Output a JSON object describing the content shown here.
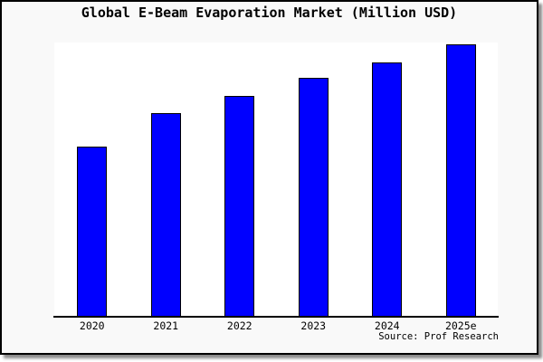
{
  "title": "Global E-Beam Evaporation Market (Million USD)",
  "source_note": "Source: Prof Research",
  "colors": {
    "bar_fill": "#0000ff",
    "bar_edge": "#000000",
    "figure_background": "#f9f9f9",
    "plot_background": "#ffffff",
    "border": "#000000",
    "text": "#000000"
  },
  "chart_data": {
    "type": "bar",
    "title": "Global E-Beam Evaporation Market (Million USD)",
    "categories": [
      "2020",
      "2021",
      "2022",
      "2023",
      "2024",
      "2025e"
    ],
    "values": [
      62.6,
      74.8,
      81.1,
      87.7,
      93.4,
      100
    ],
    "values_note": "No y-axis ticks or data labels shown in chart; values are relative bar heights indexed to 2025e = 100",
    "xlabel": "",
    "ylabel": "",
    "ylim": [
      0,
      100
    ],
    "grid": false,
    "legend": false,
    "y_axis_visible": false,
    "annotations": [
      "Source: Prof Research"
    ]
  }
}
